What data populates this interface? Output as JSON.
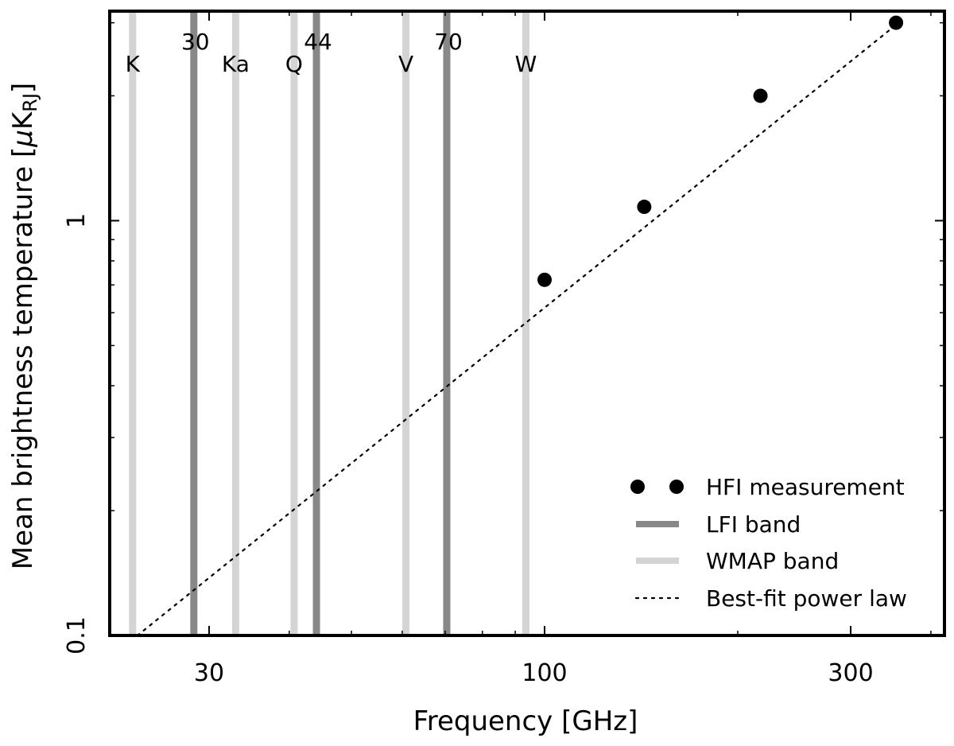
{
  "chart_data": {
    "type": "scatter",
    "title": "",
    "xlabel": "Frequency [GHz]",
    "ylabel_main": "Mean brightness temperature [",
    "ylabel_mu": "μ",
    "ylabel_K": "K",
    "ylabel_sub": "RJ",
    "ylabel_close": "]",
    "xscale": "log",
    "yscale": "log",
    "xlim": [
      21,
      420
    ],
    "ylim": [
      0.1,
      3.2
    ],
    "x_ticks": [
      {
        "value": 30,
        "label": "30"
      },
      {
        "value": 100,
        "label": "100"
      },
      {
        "value": 300,
        "label": "300"
      }
    ],
    "y_ticks": [
      {
        "value": 0.1,
        "label": "0.1"
      },
      {
        "value": 1,
        "label": "1"
      }
    ],
    "y_minor_ticks": [
      0.2,
      0.3,
      0.4,
      0.5,
      0.6,
      0.7,
      0.8,
      0.9,
      2,
      3
    ],
    "x_minor_ticks": [
      40,
      50,
      60,
      70,
      80,
      90,
      200,
      400
    ],
    "wmap_bands": [
      {
        "label": "K",
        "freq": 22.8
      },
      {
        "label": "Ka",
        "freq": 33.0
      },
      {
        "label": "Q",
        "freq": 40.7
      },
      {
        "label": "V",
        "freq": 60.8
      },
      {
        "label": "W",
        "freq": 93.5
      }
    ],
    "lfi_bands": [
      {
        "label": "30",
        "freq": 28.4
      },
      {
        "label": "44",
        "freq": 44.1
      },
      {
        "label": "70",
        "freq": 70.4
      }
    ],
    "hfi_measurements": [
      {
        "x": 100,
        "y": 0.72
      },
      {
        "x": 143,
        "y": 1.08
      },
      {
        "x": 217,
        "y": 2.0
      },
      {
        "x": 353,
        "y": 3.0
      }
    ],
    "power_law_fit": {
      "x_start": 23.2,
      "x_end": 362,
      "y_start": 0.1,
      "y_end": 3.06
    },
    "legend": {
      "position": "bottom-right",
      "entries": [
        {
          "label": "HFI measurement",
          "style": "markers"
        },
        {
          "label": "LFI band",
          "style": "dark-line"
        },
        {
          "label": "WMAP band",
          "style": "light-line"
        },
        {
          "label": "Best-fit power law",
          "style": "dotted"
        }
      ]
    },
    "colors": {
      "lfi": "#888888",
      "wmap": "#d4d4d4",
      "markers": "#000000",
      "fit": "#000000",
      "axes": "#000000"
    }
  }
}
